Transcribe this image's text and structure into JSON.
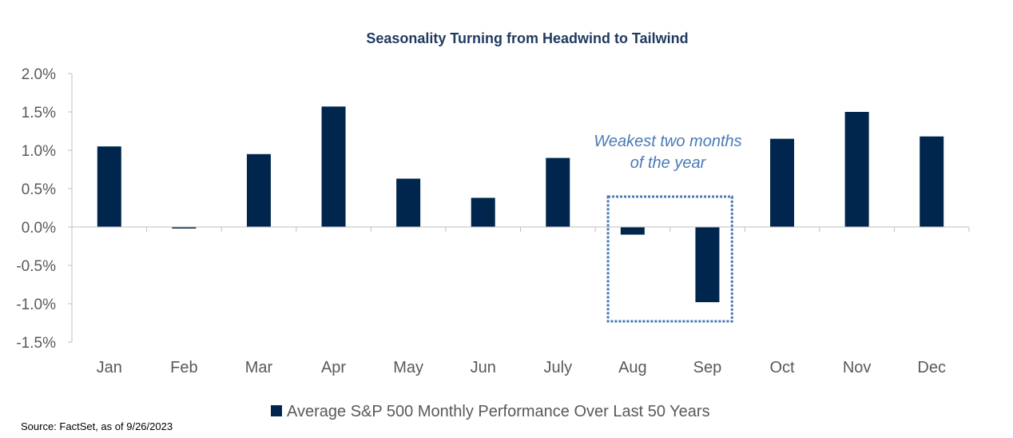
{
  "chart_data": {
    "type": "bar",
    "title": "Seasonality Turning from Headwind to Tailwind",
    "categories": [
      "Jan",
      "Feb",
      "Mar",
      "Apr",
      "May",
      "Jun",
      "July",
      "Aug",
      "Sep",
      "Oct",
      "Nov",
      "Dec"
    ],
    "series": [
      {
        "name": "Average S&P 500 Monthly Performance Over Last 50 Years",
        "values": [
          1.05,
          -0.02,
          0.95,
          1.57,
          0.63,
          0.38,
          0.9,
          -0.1,
          -0.98,
          1.15,
          1.5,
          1.18
        ],
        "color": "#00264d"
      }
    ],
    "ylim": [
      -1.5,
      2.0
    ],
    "yticks": [
      2.0,
      1.5,
      1.0,
      0.5,
      0.0,
      -0.5,
      -1.0,
      -1.5
    ],
    "ytick_labels": [
      "2.0%",
      "1.5%",
      "1.0%",
      "0.5%",
      "0.0%",
      "-0.5%",
      "-1.0%",
      "-1.5%"
    ],
    "grid": false,
    "legend_position": "bottom",
    "annotation": {
      "lines": [
        "Weakest two months",
        "of the year"
      ],
      "highlight_categories": [
        "Aug",
        "Sep"
      ],
      "color": "#4a7ab5"
    }
  },
  "source": "Source: FactSet, as of 9/26/2023"
}
